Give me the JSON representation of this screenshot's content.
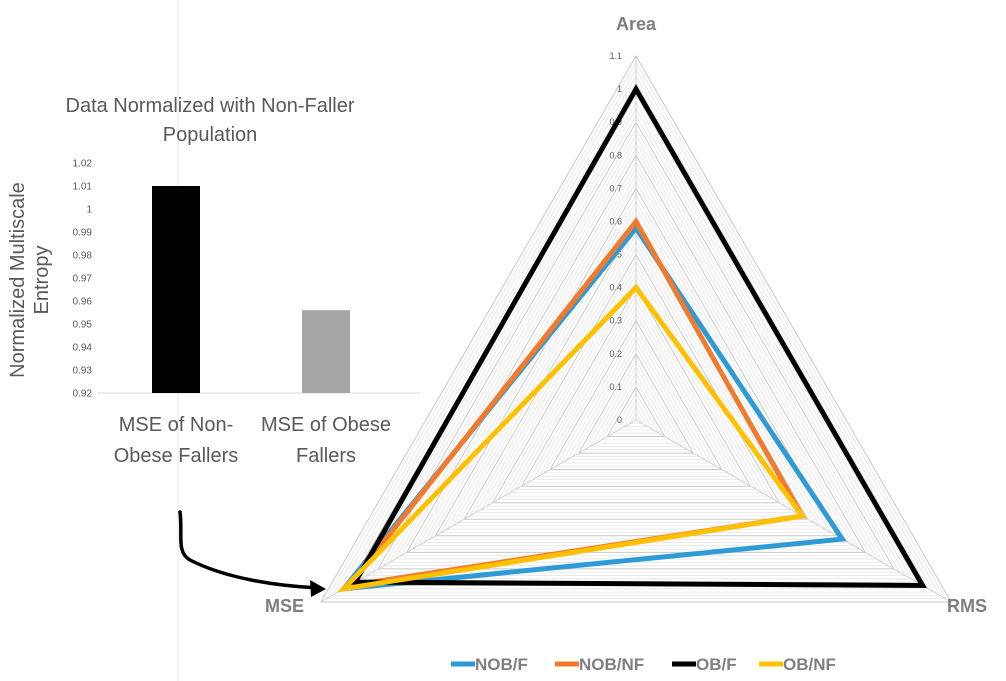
{
  "chart_data": [
    {
      "type": "bar",
      "title_line1": "Data Normalized with Non-Faller",
      "title_line2": "Population",
      "ylabel_line1": "Normalized Multiscale",
      "ylabel_line2": "Entropy",
      "ylim": [
        0.92,
        1.02
      ],
      "yticks": [
        "0.92",
        "0.93",
        "0.94",
        "0.95",
        "0.96",
        "0.97",
        "0.98",
        "0.99",
        "1",
        "1.01",
        "1.02"
      ],
      "categories": [
        {
          "line1": "MSE of Non-",
          "line2": "Obese Fallers",
          "value": 1.01,
          "color": "#000000"
        },
        {
          "line1": "MSE of Obese",
          "line2": "Fallers",
          "value": 0.956,
          "color": "#a6a6a6"
        }
      ]
    },
    {
      "type": "radar",
      "axes": [
        "Area",
        "RMS",
        "MSE"
      ],
      "rmax": 1.1,
      "rticks": [
        "0",
        "0.1",
        "0.2",
        "0.3",
        "0.4",
        "0.5",
        "0.6",
        "0.7",
        "0.8",
        "0.9",
        "1",
        "1.1"
      ],
      "series": [
        {
          "name": "NOB/F",
          "color": "#2e9bd6",
          "values": [
            0.58,
            0.72,
            1.02
          ]
        },
        {
          "name": "NOB/NF",
          "color": "#f27a2c",
          "values": [
            0.6,
            0.58,
            1.0
          ]
        },
        {
          "name": "OB/F",
          "color": "#000000",
          "values": [
            1.0,
            1.0,
            0.98
          ]
        },
        {
          "name": "OB/NF",
          "color": "#ffc000",
          "values": [
            0.4,
            0.58,
            1.02
          ]
        }
      ]
    }
  ]
}
